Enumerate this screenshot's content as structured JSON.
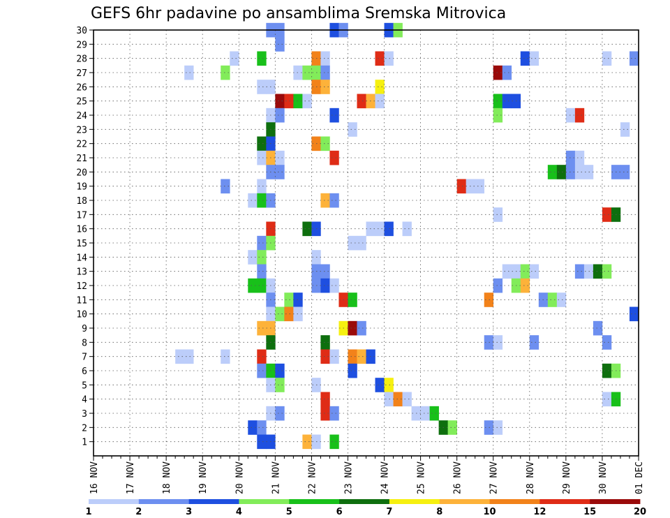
{
  "chart_data": {
    "type": "heatmap",
    "title": "GEFS 6hr padavine po ansamblima Sremska Mitrovica",
    "xlabel": "",
    "ylabel": "",
    "x_ticks": [
      "16 NOV",
      "17 NOV",
      "18 NOV",
      "19 NOV",
      "20 NOV",
      "21 NOV",
      "22 NOV",
      "23 NOV",
      "24 NOV",
      "25 NOV",
      "26 NOV",
      "27 NOV",
      "28 NOV",
      "29 NOV",
      "30 NOV",
      "01 DEC"
    ],
    "y_ticks": [
      1,
      2,
      3,
      4,
      5,
      6,
      7,
      8,
      9,
      10,
      11,
      12,
      13,
      14,
      15,
      16,
      17,
      18,
      19,
      20,
      21,
      22,
      23,
      24,
      25,
      26,
      27,
      28,
      29,
      30
    ],
    "xlim": [
      0,
      60
    ],
    "ylim": [
      0,
      30
    ],
    "x_unit": "6-hour steps from 16 NOV 00Z",
    "grid": true,
    "colorbar": {
      "labels": [
        "1",
        "2",
        "3",
        "4",
        "5",
        "6",
        "7",
        "8",
        "10",
        "12",
        "15",
        "20"
      ],
      "colors": [
        "#bccdfa",
        "#6d8ff0",
        "#1e4fe0",
        "#82ec5a",
        "#18c01a",
        "#0e6f0e",
        "#f6f010",
        "#fdb23a",
        "#f2821a",
        "#df2c16",
        "#9a0a0a"
      ]
    },
    "cells": [
      [
        19.5,
        30,
        1
      ],
      [
        20.5,
        30,
        1
      ],
      [
        26.5,
        30,
        2
      ],
      [
        27.5,
        30,
        1
      ],
      [
        32.5,
        30,
        2
      ],
      [
        33.5,
        30,
        3
      ],
      [
        20.5,
        29,
        1
      ],
      [
        15.5,
        28,
        0
      ],
      [
        18.5,
        28,
        4
      ],
      [
        24.5,
        28,
        8
      ],
      [
        25.5,
        28,
        0
      ],
      [
        31.5,
        28,
        9
      ],
      [
        32.5,
        28,
        0
      ],
      [
        47.5,
        28,
        2
      ],
      [
        48.5,
        28,
        0
      ],
      [
        56.5,
        28,
        0
      ],
      [
        59.5,
        28,
        1
      ],
      [
        10.5,
        27,
        0
      ],
      [
        14.5,
        27,
        3
      ],
      [
        22.5,
        27,
        0
      ],
      [
        23.5,
        27,
        3
      ],
      [
        24.5,
        27,
        3
      ],
      [
        25.5,
        27,
        1
      ],
      [
        44.5,
        27,
        10
      ],
      [
        45.5,
        27,
        1
      ],
      [
        18.5,
        26,
        0
      ],
      [
        19.5,
        26,
        0
      ],
      [
        24.5,
        26,
        8
      ],
      [
        25.5,
        26,
        7
      ],
      [
        31.5,
        26,
        6
      ],
      [
        20.5,
        25,
        10
      ],
      [
        21.5,
        25,
        9
      ],
      [
        22.5,
        25,
        4
      ],
      [
        23.5,
        25,
        0
      ],
      [
        29.5,
        25,
        9
      ],
      [
        30.5,
        25,
        7
      ],
      [
        31.5,
        25,
        0
      ],
      [
        44.5,
        25,
        4
      ],
      [
        45.5,
        25,
        2
      ],
      [
        46.5,
        25,
        2
      ],
      [
        19.5,
        24,
        0
      ],
      [
        20.5,
        24,
        1
      ],
      [
        26.5,
        24,
        2
      ],
      [
        44.5,
        24,
        3
      ],
      [
        52.5,
        24,
        0
      ],
      [
        53.5,
        24,
        9
      ],
      [
        19.5,
        23,
        5
      ],
      [
        28.5,
        23,
        0
      ],
      [
        58.5,
        23,
        0
      ],
      [
        18.5,
        22,
        5
      ],
      [
        19.5,
        22,
        2
      ],
      [
        24.5,
        22,
        8
      ],
      [
        25.5,
        22,
        3
      ],
      [
        18.5,
        21,
        0
      ],
      [
        19.5,
        21,
        7
      ],
      [
        20.5,
        21,
        0
      ],
      [
        26.5,
        21,
        9
      ],
      [
        52.5,
        21,
        1
      ],
      [
        53.5,
        21,
        0
      ],
      [
        19.5,
        20,
        1
      ],
      [
        20.5,
        20,
        1
      ],
      [
        50.5,
        20,
        4
      ],
      [
        51.5,
        20,
        5
      ],
      [
        52.5,
        20,
        1
      ],
      [
        53.5,
        20,
        0
      ],
      [
        54.5,
        20,
        0
      ],
      [
        57.5,
        20,
        1
      ],
      [
        58.5,
        20,
        1
      ],
      [
        14.5,
        19,
        1
      ],
      [
        18.5,
        19,
        0
      ],
      [
        40.5,
        19,
        9
      ],
      [
        41.5,
        19,
        0
      ],
      [
        42.5,
        19,
        0
      ],
      [
        17.5,
        18,
        0
      ],
      [
        18.5,
        18,
        4
      ],
      [
        19.5,
        18,
        1
      ],
      [
        25.5,
        18,
        7
      ],
      [
        26.5,
        18,
        1
      ],
      [
        44.5,
        17,
        0
      ],
      [
        56.5,
        17,
        9
      ],
      [
        57.5,
        17,
        5
      ],
      [
        19.5,
        16,
        9
      ],
      [
        23.5,
        16,
        5
      ],
      [
        24.5,
        16,
        2
      ],
      [
        30.5,
        16,
        0
      ],
      [
        31.5,
        16,
        0
      ],
      [
        32.5,
        16,
        2
      ],
      [
        34.5,
        16,
        0
      ],
      [
        18.5,
        15,
        1
      ],
      [
        19.5,
        15,
        3
      ],
      [
        28.5,
        15,
        0
      ],
      [
        29.5,
        15,
        0
      ],
      [
        17.5,
        14,
        0
      ],
      [
        18.5,
        14,
        3
      ],
      [
        24.5,
        14,
        0
      ],
      [
        18.5,
        13,
        1
      ],
      [
        24.5,
        13,
        1
      ],
      [
        25.5,
        13,
        1
      ],
      [
        45.5,
        13,
        0
      ],
      [
        46.5,
        13,
        0
      ],
      [
        47.5,
        13,
        3
      ],
      [
        48.5,
        13,
        0
      ],
      [
        53.5,
        13,
        1
      ],
      [
        54.5,
        13,
        0
      ],
      [
        55.5,
        13,
        5
      ],
      [
        56.5,
        13,
        3
      ],
      [
        17.5,
        12,
        4
      ],
      [
        18.5,
        12,
        4
      ],
      [
        19.5,
        12,
        0
      ],
      [
        24.5,
        12,
        1
      ],
      [
        25.5,
        12,
        2
      ],
      [
        26.5,
        12,
        0
      ],
      [
        44.5,
        12,
        1
      ],
      [
        46.5,
        12,
        3
      ],
      [
        47.5,
        12,
        7
      ],
      [
        19.5,
        11,
        1
      ],
      [
        21.5,
        11,
        3
      ],
      [
        22.5,
        11,
        2
      ],
      [
        27.5,
        11,
        9
      ],
      [
        28.5,
        11,
        4
      ],
      [
        43.5,
        11,
        8
      ],
      [
        49.5,
        11,
        1
      ],
      [
        50.5,
        11,
        3
      ],
      [
        51.5,
        11,
        0
      ],
      [
        19.5,
        10,
        0
      ],
      [
        20.5,
        10,
        3
      ],
      [
        21.5,
        10,
        8
      ],
      [
        22.5,
        10,
        0
      ],
      [
        59.5,
        10,
        2
      ],
      [
        18.5,
        9,
        7
      ],
      [
        19.5,
        9,
        7
      ],
      [
        27.5,
        9,
        6
      ],
      [
        28.5,
        9,
        10
      ],
      [
        29.5,
        9,
        1
      ],
      [
        55.5,
        9,
        1
      ],
      [
        19.5,
        8,
        5
      ],
      [
        25.5,
        8,
        5
      ],
      [
        43.5,
        8,
        1
      ],
      [
        44.5,
        8,
        0
      ],
      [
        48.5,
        8,
        1
      ],
      [
        56.5,
        8,
        1
      ],
      [
        9.5,
        7,
        0
      ],
      [
        10.5,
        7,
        0
      ],
      [
        14.5,
        7,
        0
      ],
      [
        18.5,
        7,
        9
      ],
      [
        25.5,
        7,
        9
      ],
      [
        26.5,
        7,
        0
      ],
      [
        28.5,
        7,
        8
      ],
      [
        29.5,
        7,
        7
      ],
      [
        30.5,
        7,
        2
      ],
      [
        18.5,
        6,
        1
      ],
      [
        19.5,
        6,
        4
      ],
      [
        20.5,
        6,
        2
      ],
      [
        28.5,
        6,
        2
      ],
      [
        56.5,
        6,
        5
      ],
      [
        57.5,
        6,
        3
      ],
      [
        19.5,
        5,
        0
      ],
      [
        20.5,
        5,
        3
      ],
      [
        24.5,
        5,
        0
      ],
      [
        31.5,
        5,
        2
      ],
      [
        32.5,
        5,
        6
      ],
      [
        25.5,
        4,
        9
      ],
      [
        32.5,
        4,
        0
      ],
      [
        33.5,
        4,
        8
      ],
      [
        34.5,
        4,
        0
      ],
      [
        56.5,
        4,
        0
      ],
      [
        57.5,
        4,
        4
      ],
      [
        19.5,
        3,
        0
      ],
      [
        20.5,
        3,
        1
      ],
      [
        25.5,
        3,
        9
      ],
      [
        26.5,
        3,
        1
      ],
      [
        35.5,
        3,
        0
      ],
      [
        36.5,
        3,
        0
      ],
      [
        37.5,
        3,
        4
      ],
      [
        17.5,
        2,
        2
      ],
      [
        18.5,
        2,
        1
      ],
      [
        38.5,
        2,
        5
      ],
      [
        39.5,
        2,
        3
      ],
      [
        43.5,
        2,
        1
      ],
      [
        44.5,
        2,
        0
      ],
      [
        18.5,
        1,
        2
      ],
      [
        19.5,
        1,
        2
      ],
      [
        23.5,
        1,
        7
      ],
      [
        24.5,
        1,
        0
      ],
      [
        26.5,
        1,
        4
      ]
    ]
  }
}
